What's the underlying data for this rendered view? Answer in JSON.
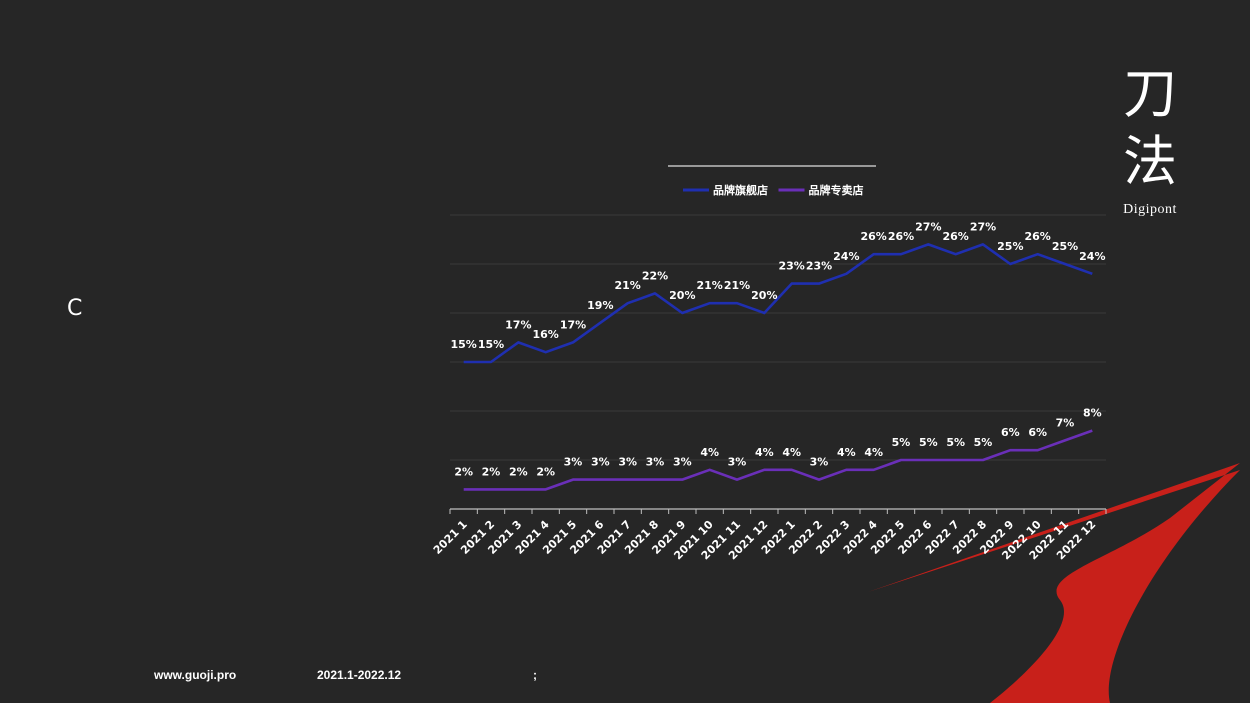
{
  "left_label": "C",
  "brand": {
    "char1": "刀",
    "char2": "法",
    "name": "Digipont"
  },
  "footer": {
    "website": "www.guoji.pro",
    "period": "2021.1-2022.12",
    "separator": ";"
  },
  "colors": {
    "background": "#262626",
    "series_flagship": "#1f2fb0",
    "series_specialty": "#6a2fb8",
    "accent_red": "#c8201a",
    "gridline": "#3a3a3a"
  },
  "chart_data": {
    "type": "line",
    "legend_position": "top",
    "grid": true,
    "ylim": [
      0,
      30
    ],
    "x": [
      "2021 1",
      "2021 2",
      "2021 3",
      "2021 4",
      "2021 5",
      "2021 6",
      "2021 7",
      "2021 8",
      "2021 9",
      "2021 10",
      "2021 11",
      "2021 12",
      "2022 1",
      "2022 2",
      "2022 3",
      "2022 4",
      "2022 5",
      "2022 6",
      "2022 7",
      "2022 8",
      "2022 9",
      "2022 10",
      "2022 11",
      "2022 12"
    ],
    "x_year": [
      "2021",
      "2021",
      "2021",
      "2021",
      "2021",
      "2021",
      "2021",
      "2021",
      "2021",
      "2021",
      "2021",
      "2021",
      "2022",
      "2022",
      "2022",
      "2022",
      "2022",
      "2022",
      "2022",
      "2022",
      "2022",
      "2022",
      "2022",
      "2022"
    ],
    "x_month": [
      "1",
      "2",
      "3",
      "4",
      "5",
      "6",
      "7",
      "8",
      "9",
      "10",
      "11",
      "12",
      "1",
      "2",
      "3",
      "4",
      "5",
      "6",
      "7",
      "8",
      "9",
      "10",
      "11",
      "12"
    ],
    "series": [
      {
        "name": "品牌旗舰店",
        "values": [
          15,
          15,
          17,
          16,
          17,
          19,
          21,
          22,
          20,
          21,
          21,
          20,
          23,
          23,
          24,
          26,
          26,
          27,
          26,
          27,
          25,
          26,
          25,
          24
        ],
        "labels": [
          "15%",
          "15%",
          "17%",
          "16%",
          "17%",
          "19%",
          "21%",
          "22%",
          "20%",
          "21%",
          "21%",
          "20%",
          "23%",
          "23%",
          "24%",
          "26%",
          "26%",
          "27%",
          "26%",
          "27%",
          "25%",
          "26%",
          "25%",
          "24%"
        ]
      },
      {
        "name": "品牌专卖店",
        "values": [
          2,
          2,
          2,
          2,
          3,
          3,
          3,
          3,
          3,
          4,
          3,
          4,
          4,
          3,
          4,
          4,
          5,
          5,
          5,
          5,
          6,
          6,
          7,
          8
        ],
        "labels": [
          "2%",
          "2%",
          "2%",
          "2%",
          "3%",
          "3%",
          "3%",
          "3%",
          "3%",
          "4%",
          "3%",
          "4%",
          "4%",
          "3%",
          "4%",
          "4%",
          "5%",
          "5%",
          "5%",
          "5%",
          "6%",
          "6%",
          "7%",
          "8%"
        ]
      }
    ]
  }
}
